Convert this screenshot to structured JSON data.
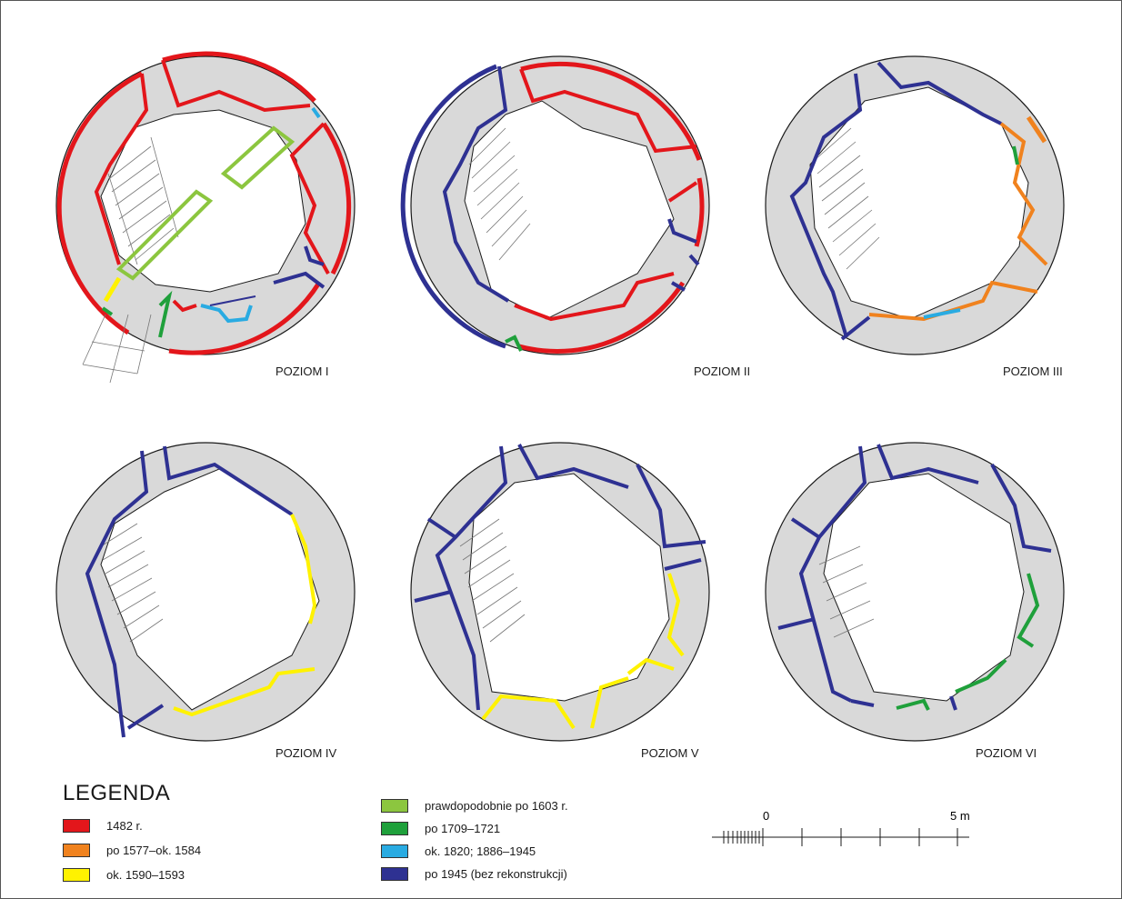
{
  "levels": [
    {
      "label": "POZIOM I"
    },
    {
      "label": "POZIOM II"
    },
    {
      "label": "POZIOM III"
    },
    {
      "label": "POZIOM IV"
    },
    {
      "label": "POZIOM V"
    },
    {
      "label": "POZIOM VI"
    }
  ],
  "legend": {
    "title": "LEGENDA",
    "items": [
      {
        "label": "1482 r.",
        "color": "#e3161b"
      },
      {
        "label": "po 1577–ok. 1584",
        "color": "#f0821e"
      },
      {
        "label": "ok. 1590–1593",
        "color": "#fff200"
      },
      {
        "label": "prawdopodobnie po 1603 r.",
        "color": "#8cc63f"
      },
      {
        "label": "po 1709–1721",
        "color": "#1fa03b"
      },
      {
        "label": "ok. 1820; 1886–1945",
        "color": "#29abe2"
      },
      {
        "label": "po 1945 (bez rekonstrukcji)",
        "color": "#2e3192"
      }
    ]
  },
  "scale": {
    "start": "0",
    "end": "5 m"
  },
  "colors": {
    "wall_fill": "#d9d9d9",
    "outline": "#1a1a1a"
  }
}
